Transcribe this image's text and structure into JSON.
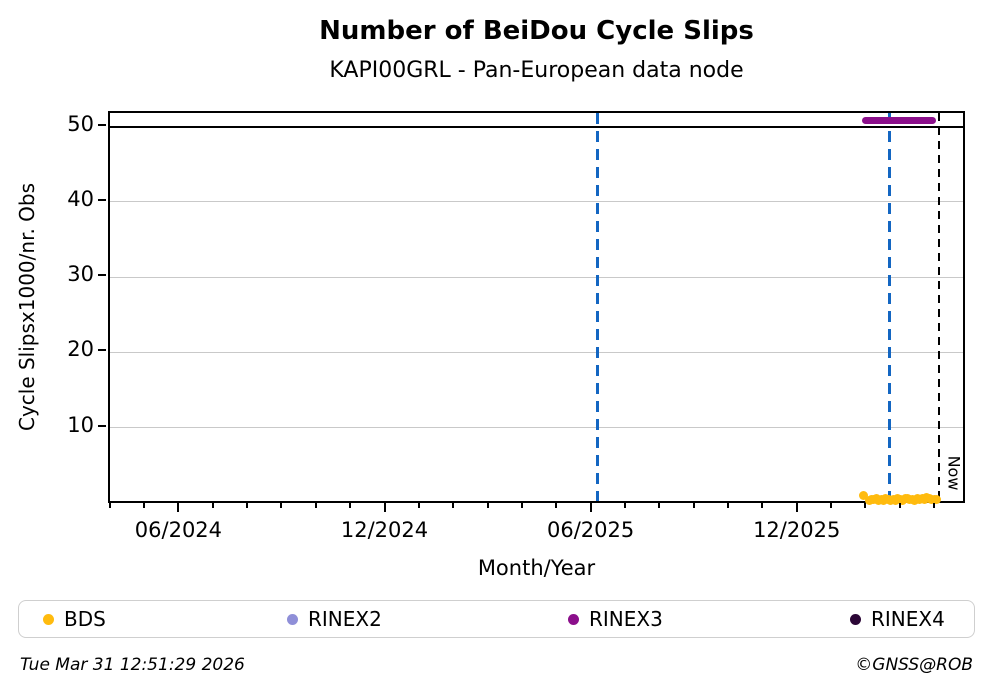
{
  "header": {
    "title": "Number of BeiDou Cycle Slips",
    "subtitle": "KAPI00GRL - Pan-European data node"
  },
  "footer": {
    "timestamp": "Tue Mar 31 12:51:29 2026",
    "credit": "©GNSS@ROB"
  },
  "legend": {
    "entries": [
      {
        "label": "BDS",
        "color": "#ffbb0e"
      },
      {
        "label": "RINEX2",
        "color": "#8f8fd8"
      },
      {
        "label": "RINEX3",
        "color": "#8b0f8b"
      },
      {
        "label": "RINEX4",
        "color": "#2b0636"
      }
    ]
  },
  "chart_data": {
    "type": "scatter",
    "title": "Number of BeiDou Cycle Slips",
    "subtitle": "KAPI00GRL - Pan-European data node",
    "xlabel": "Month/Year",
    "ylabel": "Cycle Slipsx1000/nr. Obs",
    "x_unit": "months since 2024-01 (0 = Jan 2024)",
    "xlim_months": [
      2.95,
      27.9
    ],
    "ylim": [
      -0.3,
      51.8
    ],
    "grid": "horizontal-only",
    "grid_color": "#c9c9c9",
    "y_ticks": [
      10,
      20,
      30,
      40,
      50
    ],
    "x_ticks": [
      {
        "m": 5,
        "label": "06/2024"
      },
      {
        "m": 11,
        "label": "12/2024"
      },
      {
        "m": 17,
        "label": "06/2025"
      },
      {
        "m": 23,
        "label": "12/2025"
      }
    ],
    "x_minor_ticks": {
      "start_m": 3,
      "end_m": 27,
      "major_m": [
        5,
        11,
        17,
        23
      ]
    },
    "hlines": [
      {
        "value": 50,
        "color": "#000000"
      }
    ],
    "vlines": [
      {
        "m": 17.15,
        "date": "2025-06-05",
        "color": "#1366c2",
        "style": "dashed",
        "width": 3,
        "dash": 11,
        "gap": 7
      },
      {
        "m": 25.64,
        "date": "2026-02-20",
        "color": "#1366c2",
        "style": "dashed",
        "width": 3,
        "dash": 11,
        "gap": 7
      },
      {
        "m": 27.09,
        "date": "2026-03-31",
        "color": "#000000",
        "style": "dashed",
        "width": 2,
        "dash": 8,
        "gap": 6,
        "label": "Now"
      }
    ],
    "series": [
      {
        "name": "BDS",
        "color": "#ffbb0e",
        "type": "scatter",
        "points": [
          [
            24.88,
            0.97
          ],
          [
            25.05,
            0.3
          ],
          [
            25.12,
            0.45
          ],
          [
            25.19,
            0.38
          ],
          [
            25.26,
            0.52
          ],
          [
            25.33,
            0.33
          ],
          [
            25.4,
            0.47
          ],
          [
            25.47,
            0.28
          ],
          [
            25.54,
            0.55
          ],
          [
            25.61,
            0.42
          ],
          [
            25.68,
            0.3
          ],
          [
            25.75,
            0.48
          ],
          [
            25.82,
            0.36
          ],
          [
            25.89,
            0.55
          ],
          [
            25.96,
            0.4
          ],
          [
            26.03,
            0.28
          ],
          [
            26.1,
            0.5
          ],
          [
            26.17,
            0.62
          ],
          [
            26.24,
            0.38
          ],
          [
            26.31,
            0.45
          ],
          [
            26.38,
            0.3
          ],
          [
            26.45,
            0.52
          ],
          [
            26.52,
            0.4
          ],
          [
            26.59,
            0.58
          ],
          [
            26.66,
            0.46
          ],
          [
            26.73,
            0.65
          ],
          [
            26.8,
            0.5
          ],
          [
            26.87,
            0.38
          ],
          [
            26.94,
            0.45
          ],
          [
            27.01,
            0.4
          ]
        ]
      },
      {
        "name": "RINEX2",
        "color": "#8f8fd8",
        "type": "scatter",
        "points": []
      },
      {
        "name": "RINEX3",
        "color": "#8b0f8b",
        "type": "segment",
        "value": 50.8,
        "m_start": 24.85,
        "m_end": 27.0
      },
      {
        "name": "RINEX4",
        "color": "#2b0636",
        "type": "scatter",
        "points": []
      }
    ]
  }
}
